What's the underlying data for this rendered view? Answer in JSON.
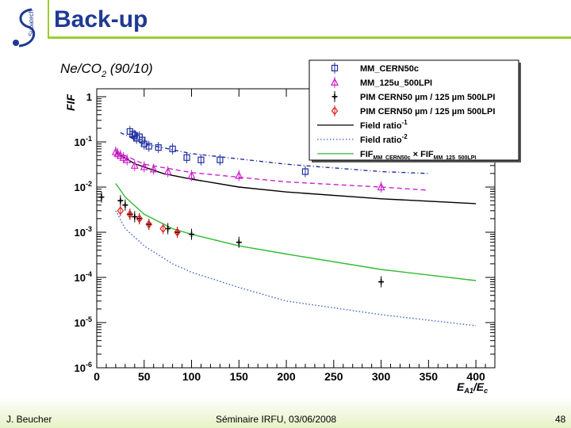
{
  "slide": {
    "title": "Back-up",
    "author": "J. Beucher",
    "event": "Séminaire IRFU, 03/06/2008",
    "page": "48",
    "logo_text": "Subatech"
  },
  "chart_data": {
    "type": "scatter",
    "title": "Ne/CO",
    "title_sub": "2",
    "title_tail": " (90/10)",
    "xlabel": "E",
    "xlabel_sub": "A1",
    "xlabel_mid": "/E",
    "xlabel_sub2": "c",
    "ylabel": "FIF",
    "xlim": [
      0,
      420
    ],
    "ylim": [
      1e-06,
      1.5
    ],
    "yscale": "log",
    "grid": false,
    "legend_position": "top-right",
    "xticks": [
      {
        "v": 0,
        "label": "0"
      },
      {
        "v": 50,
        "label": "50"
      },
      {
        "v": 100,
        "label": "100"
      },
      {
        "v": 150,
        "label": "150"
      },
      {
        "v": 200,
        "label": "200"
      },
      {
        "v": 250,
        "label": "250"
      },
      {
        "v": 300,
        "label": "300"
      },
      {
        "v": 350,
        "label": "350"
      },
      {
        "v": 400,
        "label": "400"
      }
    ],
    "yticks": [
      {
        "v": 1,
        "base": "1",
        "exp": ""
      },
      {
        "v": 0.1,
        "base": "10",
        "exp": "-1"
      },
      {
        "v": 0.01,
        "base": "10",
        "exp": "-2"
      },
      {
        "v": 0.001,
        "base": "10",
        "exp": "-3"
      },
      {
        "v": 0.0001,
        "base": "10",
        "exp": "-4"
      },
      {
        "v": 1e-05,
        "base": "10",
        "exp": "-5"
      },
      {
        "v": 1e-06,
        "base": "10",
        "exp": "-6"
      }
    ],
    "legend": [
      {
        "label": "MM_CERN50c",
        "marker": "square",
        "color": "#1f2fa0"
      },
      {
        "label": "MM_125u_500LPI",
        "marker": "triangle",
        "color": "#cc22cc"
      },
      {
        "label": "PIM CERN50 µm / 125 µm 500LPI",
        "marker": "cross",
        "color": "#000000"
      },
      {
        "label": "PIM CERN50 µm / 125 µm 500LPI",
        "marker": "diamond",
        "color": "#e02020"
      },
      {
        "label": "Field ratio",
        "sup": "-1",
        "line": "solid",
        "color": "#000000"
      },
      {
        "label": "Field ratio",
        "sup": "-2",
        "line": "dotted",
        "color": "#3b62c9"
      },
      {
        "label": "FIF",
        "sub1": "MM_CERN50c",
        "mid": " × FIF",
        "sub2": "MM_125_500LPI",
        "line": "solid",
        "color": "#33bb33"
      }
    ],
    "series": [
      {
        "marker": "square",
        "color": "#1f2fa0",
        "points": [
          [
            35,
            0.17
          ],
          [
            38,
            0.15
          ],
          [
            40,
            0.14
          ],
          [
            42,
            0.12
          ],
          [
            45,
            0.13
          ],
          [
            48,
            0.11
          ],
          [
            50,
            0.09
          ],
          [
            55,
            0.08
          ],
          [
            65,
            0.075
          ],
          [
            80,
            0.07
          ],
          [
            95,
            0.045
          ],
          [
            110,
            0.04
          ],
          [
            130,
            0.04
          ],
          [
            220,
            0.022
          ]
        ]
      },
      {
        "marker": "triangle",
        "color": "#cc22cc",
        "points": [
          [
            20,
            0.06
          ],
          [
            22,
            0.055
          ],
          [
            25,
            0.05
          ],
          [
            28,
            0.045
          ],
          [
            32,
            0.04
          ],
          [
            40,
            0.03
          ],
          [
            50,
            0.028
          ],
          [
            60,
            0.025
          ],
          [
            75,
            0.022
          ],
          [
            100,
            0.018
          ],
          [
            150,
            0.018
          ],
          [
            300,
            0.01
          ]
        ]
      },
      {
        "marker": "cross",
        "color": "#000000",
        "points": [
          [
            5,
            0.006
          ],
          [
            25,
            0.005
          ],
          [
            30,
            0.004
          ],
          [
            35,
            0.0025
          ],
          [
            40,
            0.0022
          ],
          [
            45,
            0.002
          ],
          [
            55,
            0.0015
          ],
          [
            75,
            0.0012
          ],
          [
            85,
            0.001
          ],
          [
            100,
            0.0009
          ],
          [
            150,
            0.0006
          ],
          [
            300,
            8e-05
          ]
        ]
      },
      {
        "marker": "diamond",
        "color": "#e02020",
        "points": [
          [
            25,
            0.003
          ],
          [
            35,
            0.0025
          ],
          [
            45,
            0.002
          ],
          [
            55,
            0.0015
          ],
          [
            70,
            0.0012
          ],
          [
            85,
            0.001
          ]
        ]
      }
    ],
    "curves": [
      {
        "name": "MM_CERN50c fit",
        "style": "dashdot",
        "color": "#1f2fa0",
        "points": [
          [
            25,
            0.16
          ],
          [
            50,
            0.09
          ],
          [
            100,
            0.055
          ],
          [
            200,
            0.032
          ],
          [
            300,
            0.022
          ],
          [
            350,
            0.02
          ]
        ]
      },
      {
        "name": "MM_125u fit",
        "style": "dashed",
        "color": "#cc22cc",
        "points": [
          [
            20,
            0.062
          ],
          [
            50,
            0.032
          ],
          [
            100,
            0.021
          ],
          [
            200,
            0.013
          ],
          [
            300,
            0.01
          ],
          [
            350,
            0.0085
          ]
        ]
      },
      {
        "name": "Field ratio -1",
        "style": "solid",
        "color": "#000000",
        "points": [
          [
            20,
            0.058
          ],
          [
            40,
            0.033
          ],
          [
            70,
            0.02
          ],
          [
            100,
            0.015
          ],
          [
            150,
            0.01
          ],
          [
            200,
            0.0078
          ],
          [
            300,
            0.0055
          ],
          [
            400,
            0.0043
          ]
        ]
      },
      {
        "name": "Field ratio -2",
        "style": "dotted",
        "color": "#3b62c9",
        "points": [
          [
            20,
            0.003
          ],
          [
            30,
            0.0012
          ],
          [
            50,
            0.0005
          ],
          [
            80,
            0.0002
          ],
          [
            100,
            0.00013
          ],
          [
            150,
            6e-05
          ],
          [
            200,
            3e-05
          ],
          [
            300,
            1.5e-05
          ],
          [
            400,
            8.5e-06
          ]
        ]
      },
      {
        "name": "FIF product",
        "style": "solid",
        "color": "#33bb33",
        "points": [
          [
            20,
            0.012
          ],
          [
            30,
            0.006
          ],
          [
            50,
            0.0025
          ],
          [
            80,
            0.0012
          ],
          [
            100,
            0.0009
          ],
          [
            150,
            0.0005
          ],
          [
            200,
            0.00033
          ],
          [
            300,
            0.00015
          ],
          [
            400,
            8.5e-05
          ]
        ]
      }
    ]
  }
}
